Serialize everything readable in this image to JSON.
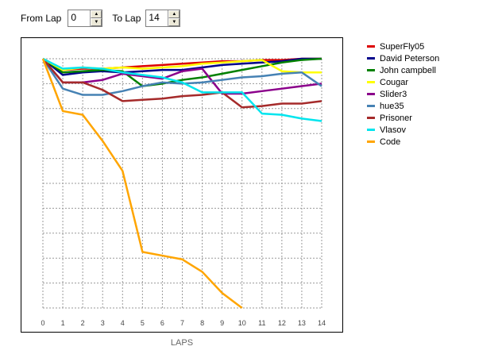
{
  "controls": {
    "from_label": "From Lap",
    "from_value": "0",
    "to_label": "To Lap",
    "to_value": "14"
  },
  "chart_data": {
    "type": "line",
    "xlabel": "LAPS",
    "x": [
      0,
      1,
      2,
      3,
      4,
      5,
      6,
      7,
      8,
      9,
      10,
      11,
      12,
      13,
      14
    ],
    "xlim": [
      0,
      14
    ],
    "ylim": [
      0,
      10
    ],
    "grid": true,
    "legend_position": "right",
    "series": [
      {
        "name": "SuperFly05",
        "color": "#dd0000",
        "values": [
          0,
          0.45,
          0.4,
          0.4,
          0.35,
          0.3,
          0.25,
          0.2,
          0.15,
          0.1,
          0.1,
          0.05,
          0.05,
          0.0,
          0.0
        ]
      },
      {
        "name": "David Peterson",
        "color": "#00008b",
        "values": [
          0,
          0.65,
          0.55,
          0.5,
          0.55,
          0.5,
          0.45,
          0.45,
          0.35,
          0.25,
          0.2,
          0.15,
          0.1,
          0.0,
          0.0
        ]
      },
      {
        "name": "John campbell",
        "color": "#008000",
        "values": [
          0,
          0.55,
          0.5,
          0.45,
          0.5,
          1.1,
          1.0,
          0.85,
          0.75,
          0.6,
          0.45,
          0.3,
          0.15,
          0.05,
          0.0
        ]
      },
      {
        "name": "Cougar",
        "color": "#ffff00",
        "values": [
          0,
          0.45,
          0.35,
          0.4,
          0.35,
          0.4,
          0.35,
          0.3,
          0.2,
          0.15,
          0.1,
          0.05,
          0.5,
          0.55,
          0.55
        ]
      },
      {
        "name": "Slider3",
        "color": "#8b008b",
        "values": [
          0,
          0.95,
          0.95,
          0.85,
          0.6,
          0.7,
          0.8,
          0.5,
          0.4,
          1.4,
          1.4,
          1.3,
          1.2,
          1.1,
          1.0
        ]
      },
      {
        "name": "hue35",
        "color": "#4682b4",
        "values": [
          0,
          1.2,
          1.45,
          1.45,
          1.3,
          1.1,
          0.95,
          1.0,
          0.95,
          0.85,
          0.75,
          0.7,
          0.6,
          0.55,
          1.1
        ]
      },
      {
        "name": "Prisoner",
        "color": "#a52a2a",
        "values": [
          0,
          0.95,
          0.95,
          1.25,
          1.7,
          1.65,
          1.6,
          1.5,
          1.45,
          1.35,
          1.95,
          1.9,
          1.8,
          1.8,
          1.7
        ]
      },
      {
        "name": "Vlasov",
        "color": "#00e5ee",
        "values": [
          0,
          0.4,
          0.35,
          0.4,
          0.55,
          0.65,
          0.75,
          0.95,
          1.35,
          1.35,
          1.35,
          2.2,
          2.25,
          2.4,
          2.5
        ]
      },
      {
        "name": "Code",
        "color": "#ffa500",
        "values": [
          0,
          2.1,
          2.25,
          3.3,
          4.5,
          7.75,
          7.9,
          8.05,
          8.55,
          9.4,
          10.0,
          null,
          null,
          null,
          null
        ]
      }
    ]
  }
}
